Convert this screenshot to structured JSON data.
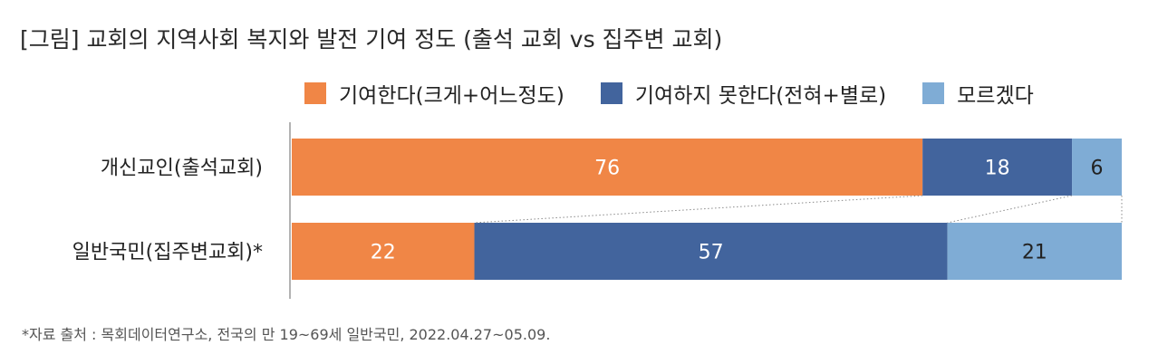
{
  "chart_data": {
    "type": "bar",
    "orientation": "horizontal",
    "stacked": true,
    "title": "[그림] 교회의 지역사회 복지와 발전 기여 정도 (출석 교회 vs 집주변 교회)",
    "categories": [
      "개신교인(출석교회)",
      "일반국민(집주변교회)*"
    ],
    "series": [
      {
        "name": "기여한다(크게+어느정도)",
        "values": [
          76,
          22
        ],
        "color": "#F08646"
      },
      {
        "name": "기여하지 못한다(전혀+별로)",
        "values": [
          18,
          57
        ],
        "color": "#42649D"
      },
      {
        "name": "모르겠다",
        "values": [
          6,
          21
        ],
        "color": "#7FACD5"
      }
    ],
    "xlim": [
      0,
      100
    ],
    "grid": false,
    "legend_position": "top-right",
    "data_labels": true,
    "source_note": "*자료 출처 : 목회데이터연구소, 전국의 만 19~69세 일반국민, 2022.04.27~05.09."
  }
}
